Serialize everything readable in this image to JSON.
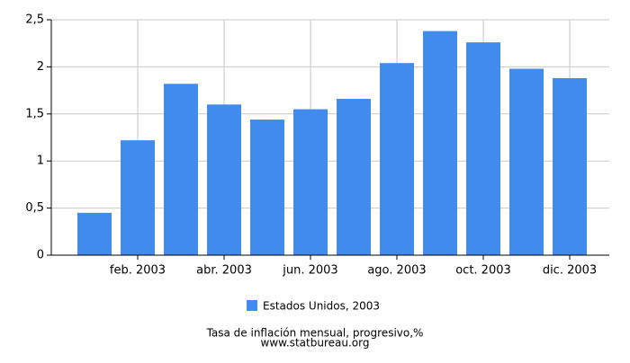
{
  "chart_data": {
    "type": "bar",
    "categories": [
      null,
      "feb. 2003",
      null,
      "abr. 2003",
      null,
      "jun. 2003",
      null,
      "ago. 2003",
      null,
      "oct. 2003",
      null,
      "dic. 2003"
    ],
    "series": [
      {
        "name": "Estados Unidos, 2003",
        "color": "#428bee",
        "values": [
          0.45,
          1.22,
          1.82,
          1.6,
          1.44,
          1.55,
          1.66,
          2.04,
          2.38,
          2.26,
          1.98,
          1.88
        ]
      }
    ],
    "ylim": [
      0,
      2.5
    ],
    "yticks": [
      0,
      {
        "value": 0.5,
        "label": "0,5"
      },
      1,
      {
        "value": 1.5,
        "label": "1,5"
      },
      2,
      {
        "value": 2.5,
        "label": "2,5"
      }
    ],
    "grid": true,
    "caption": "Tasa de inflación mensual, progresivo,%",
    "source": "www.statbureau.org"
  }
}
